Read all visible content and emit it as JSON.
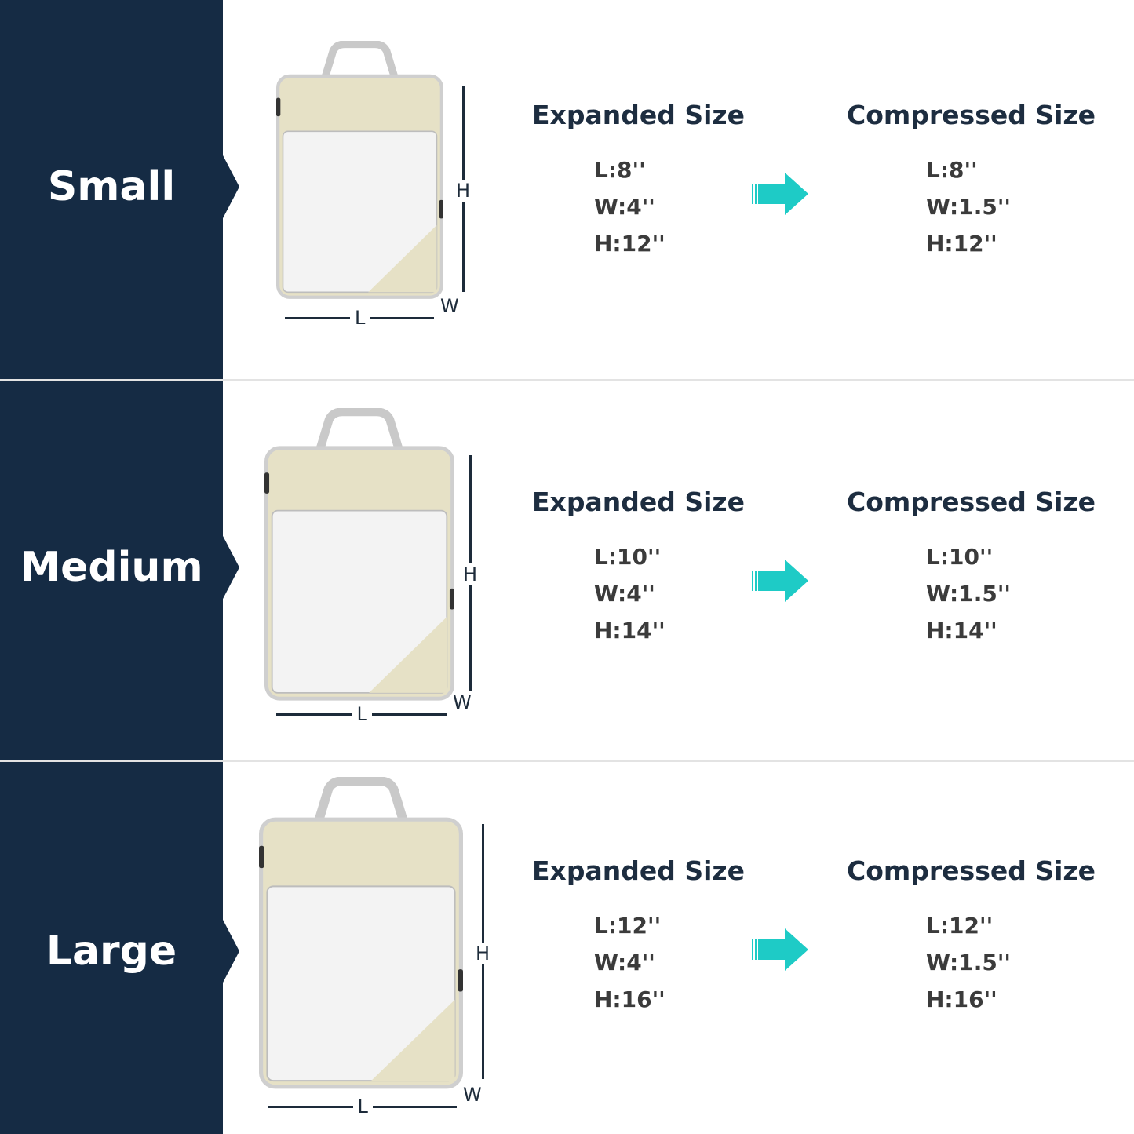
{
  "colors": {
    "panel": "#152b44",
    "arrow": "#1ecbc6",
    "bag_beige": "#e6e1c6",
    "bag_trim": "#c8c8c8"
  },
  "dimension_labels": {
    "length": "L",
    "width": "W",
    "height": "H"
  },
  "arrow_icon": "arrow-right-icon",
  "sizes": [
    {
      "name": "Small",
      "expanded": {
        "title": "Expanded Size",
        "values": [
          "L:8''",
          "W:4''",
          "H:12''"
        ]
      },
      "compressed": {
        "title": "Compressed Size",
        "values": [
          "L:8''",
          "W:1.5''",
          "H:12''"
        ]
      }
    },
    {
      "name": "Medium",
      "expanded": {
        "title": "Expanded Size",
        "values": [
          "L:10''",
          "W:4''",
          "H:14''"
        ]
      },
      "compressed": {
        "title": "Compressed Size",
        "values": [
          "L:10''",
          "W:1.5''",
          "H:14''"
        ]
      }
    },
    {
      "name": "Large",
      "expanded": {
        "title": "Expanded Size",
        "values": [
          "L:12''",
          "W:4''",
          "H:16''"
        ]
      },
      "compressed": {
        "title": "Compressed Size",
        "values": [
          "L:12''",
          "W:1.5''",
          "H:16''"
        ]
      }
    }
  ]
}
